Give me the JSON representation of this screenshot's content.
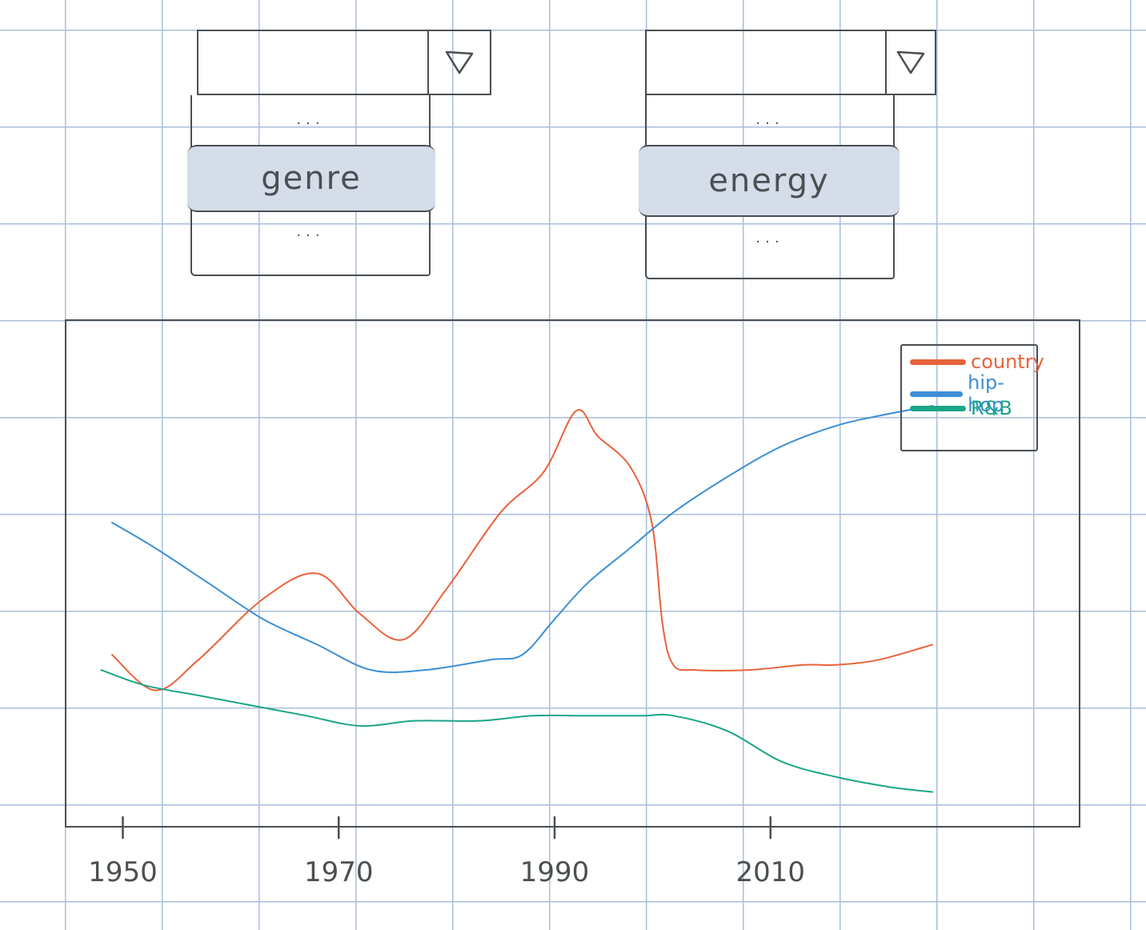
{
  "dropdowns": [
    {
      "id": "x",
      "selected": "genre",
      "above": "...",
      "below": "..."
    },
    {
      "id": "y",
      "selected": "energy",
      "above": "...",
      "below": "..."
    }
  ],
  "chart_data": {
    "type": "line",
    "x_tick_labels": [
      "1950",
      "1970",
      "1990",
      "2010"
    ],
    "xlim": [
      1949,
      2035
    ],
    "ylim": [
      0,
      1
    ],
    "grid": false,
    "legend": "top-right",
    "series": [
      {
        "name": "country",
        "color": "#e8623a",
        "x": [
          1949,
          1953,
          1957,
          1963,
          1968,
          1972,
          1976,
          1980,
          1985,
          1989,
          1992,
          1994,
          1997,
          1999,
          2000,
          2001,
          2003,
          2008,
          2013,
          2016,
          2020,
          2025
        ],
        "y": [
          0.34,
          0.27,
          0.33,
          0.45,
          0.5,
          0.42,
          0.37,
          0.47,
          0.62,
          0.7,
          0.82,
          0.77,
          0.71,
          0.6,
          0.4,
          0.32,
          0.31,
          0.31,
          0.32,
          0.32,
          0.33,
          0.36
        ]
      },
      {
        "name": "hip-hop",
        "color": "#3d8fd6",
        "x": [
          1949,
          1953,
          1958,
          1963,
          1968,
          1973,
          1978,
          1984,
          1987,
          1990,
          1993,
          1997,
          2001,
          2006,
          2011,
          2016,
          2020,
          2025
        ],
        "y": [
          0.6,
          0.55,
          0.48,
          0.41,
          0.36,
          0.31,
          0.31,
          0.33,
          0.34,
          0.41,
          0.48,
          0.55,
          0.62,
          0.69,
          0.75,
          0.79,
          0.81,
          0.83
        ]
      },
      {
        "name": "R&B",
        "color": "#1ba587",
        "x": [
          1948,
          1952,
          1957,
          1962,
          1967,
          1972,
          1977,
          1983,
          1988,
          1993,
          1998,
          2001,
          2006,
          2011,
          2016,
          2021,
          2025
        ],
        "y": [
          0.31,
          0.28,
          0.26,
          0.24,
          0.22,
          0.2,
          0.21,
          0.21,
          0.22,
          0.22,
          0.22,
          0.22,
          0.19,
          0.13,
          0.1,
          0.08,
          0.07
        ]
      }
    ]
  }
}
